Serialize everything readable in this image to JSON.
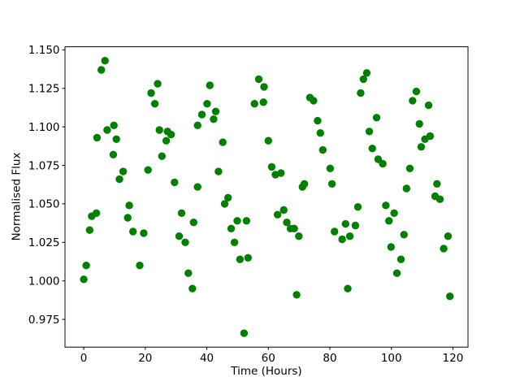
{
  "figure": {
    "background": "#ffffff",
    "spine_color": "#000000",
    "tick_label_color": "#000000"
  },
  "chart_data": {
    "type": "scatter",
    "title": "",
    "xlabel": "Time (Hours)",
    "ylabel": "Normalised Flux",
    "xlim": [
      -6.1,
      124.9
    ],
    "ylim": [
      0.957,
      1.152
    ],
    "xticks": [
      0,
      20,
      40,
      60,
      80,
      100,
      120
    ],
    "yticks": [
      0.975,
      1.0,
      1.025,
      1.05,
      1.075,
      1.1,
      1.125,
      1.15
    ],
    "x_tick_decimals": 0,
    "y_tick_decimals": 3,
    "grid": false,
    "legend": null,
    "marker": {
      "shape": "circle",
      "color": "#008000",
      "radius_px": 4.7
    },
    "points": [
      [
        0.0,
        1.001
      ],
      [
        0.8,
        1.01
      ],
      [
        1.9,
        1.033
      ],
      [
        2.6,
        1.042
      ],
      [
        4.1,
        1.044
      ],
      [
        4.3,
        1.093
      ],
      [
        5.7,
        1.137
      ],
      [
        6.9,
        1.143
      ],
      [
        7.6,
        1.098
      ],
      [
        9.6,
        1.082
      ],
      [
        9.8,
        1.101
      ],
      [
        10.6,
        1.092
      ],
      [
        11.6,
        1.066
      ],
      [
        12.8,
        1.071
      ],
      [
        14.3,
        1.041
      ],
      [
        14.8,
        1.049
      ],
      [
        16.0,
        1.032
      ],
      [
        18.2,
        1.01
      ],
      [
        19.5,
        1.031
      ],
      [
        20.9,
        1.072
      ],
      [
        21.9,
        1.122
      ],
      [
        23.1,
        1.115
      ],
      [
        24.0,
        1.128
      ],
      [
        24.6,
        1.098
      ],
      [
        25.4,
        1.081
      ],
      [
        26.8,
        1.091
      ],
      [
        27.2,
        1.097
      ],
      [
        28.4,
        1.095
      ],
      [
        29.5,
        1.064
      ],
      [
        31.0,
        1.029
      ],
      [
        31.8,
        1.044
      ],
      [
        33.0,
        1.025
      ],
      [
        34.0,
        1.005
      ],
      [
        35.3,
        0.995
      ],
      [
        35.7,
        1.038
      ],
      [
        37.0,
        1.061
      ],
      [
        37.0,
        1.101
      ],
      [
        38.4,
        1.108
      ],
      [
        40.1,
        1.115
      ],
      [
        41.0,
        1.127
      ],
      [
        42.2,
        1.105
      ],
      [
        42.9,
        1.11
      ],
      [
        43.8,
        1.071
      ],
      [
        45.2,
        1.09
      ],
      [
        45.8,
        1.05
      ],
      [
        46.9,
        1.054
      ],
      [
        47.9,
        1.034
      ],
      [
        49.0,
        1.025
      ],
      [
        49.9,
        1.039
      ],
      [
        50.8,
        1.014
      ],
      [
        52.1,
        0.966
      ],
      [
        52.9,
        1.039
      ],
      [
        53.4,
        1.015
      ],
      [
        55.5,
        1.115
      ],
      [
        56.9,
        1.131
      ],
      [
        58.4,
        1.116
      ],
      [
        58.6,
        1.126
      ],
      [
        60.0,
        1.091
      ],
      [
        61.1,
        1.074
      ],
      [
        62.3,
        1.069
      ],
      [
        63.0,
        1.043
      ],
      [
        64.1,
        1.07
      ],
      [
        65.0,
        1.046
      ],
      [
        66.0,
        1.038
      ],
      [
        67.2,
        1.034
      ],
      [
        68.4,
        1.034
      ],
      [
        69.2,
        0.991
      ],
      [
        69.9,
        1.029
      ],
      [
        71.1,
        1.061
      ],
      [
        71.7,
        1.063
      ],
      [
        73.5,
        1.119
      ],
      [
        74.7,
        1.117
      ],
      [
        76.0,
        1.104
      ],
      [
        76.9,
        1.096
      ],
      [
        77.7,
        1.085
      ],
      [
        80.1,
        1.073
      ],
      [
        80.7,
        1.063
      ],
      [
        81.5,
        1.032
      ],
      [
        84.0,
        1.027
      ],
      [
        85.1,
        1.037
      ],
      [
        85.8,
        0.995
      ],
      [
        86.5,
        1.029
      ],
      [
        88.3,
        1.036
      ],
      [
        89.1,
        1.048
      ],
      [
        90.0,
        1.122
      ],
      [
        90.9,
        1.131
      ],
      [
        92.0,
        1.135
      ],
      [
        92.8,
        1.097
      ],
      [
        93.8,
        1.086
      ],
      [
        95.2,
        1.106
      ],
      [
        95.7,
        1.079
      ],
      [
        97.2,
        1.076
      ],
      [
        98.2,
        1.049
      ],
      [
        99.2,
        1.039
      ],
      [
        99.9,
        1.022
      ],
      [
        100.9,
        1.044
      ],
      [
        101.8,
        1.005
      ],
      [
        103.1,
        1.014
      ],
      [
        104.1,
        1.03
      ],
      [
        104.9,
        1.06
      ],
      [
        106.0,
        1.073
      ],
      [
        106.9,
        1.117
      ],
      [
        108.1,
        1.123
      ],
      [
        109.1,
        1.102
      ],
      [
        109.7,
        1.087
      ],
      [
        110.9,
        1.092
      ],
      [
        112.1,
        1.114
      ],
      [
        112.6,
        1.094
      ],
      [
        114.2,
        1.055
      ],
      [
        114.8,
        1.063
      ],
      [
        115.8,
        1.053
      ],
      [
        117.0,
        1.021
      ],
      [
        118.4,
        1.029
      ],
      [
        119.0,
        0.99
      ]
    ]
  }
}
